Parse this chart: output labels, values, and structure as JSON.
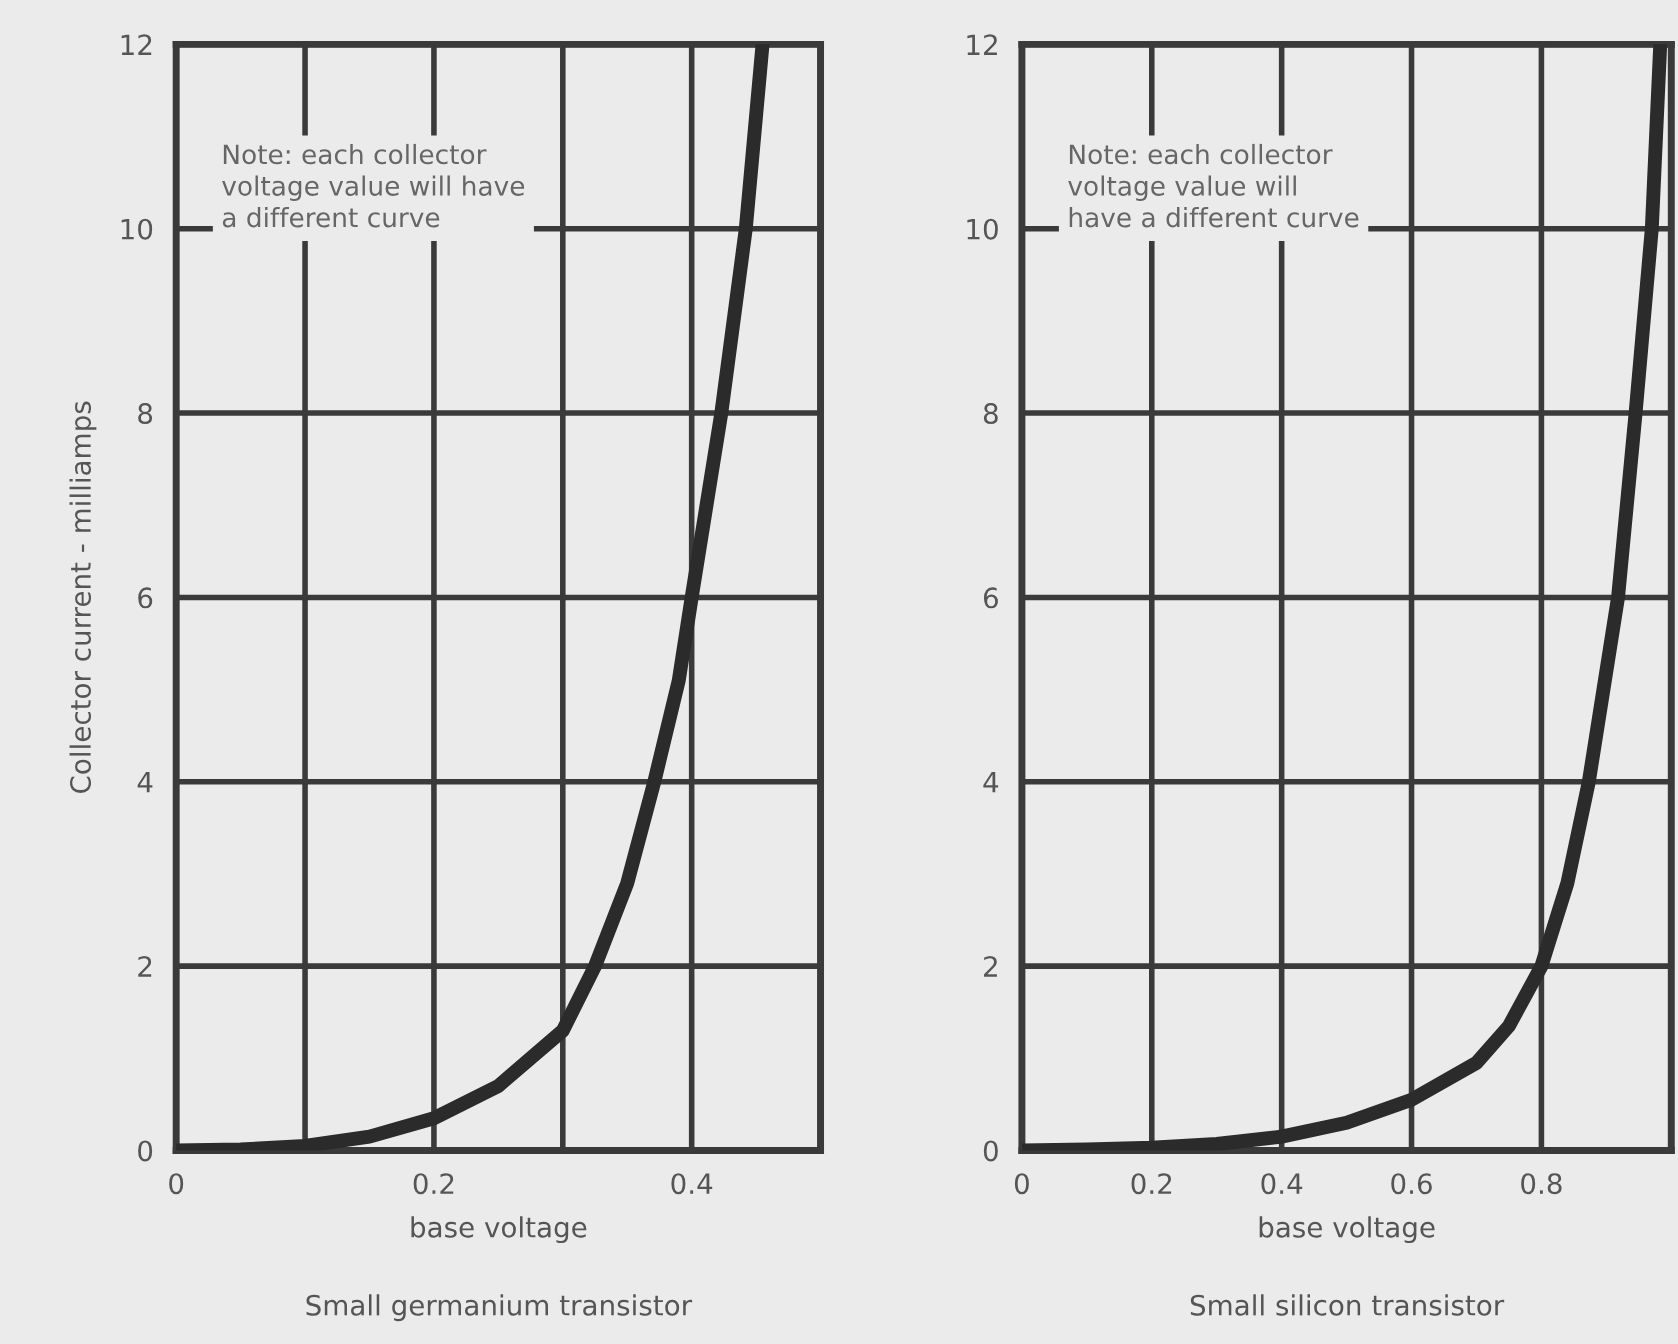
{
  "chart_data": [
    {
      "type": "line",
      "title": "Small germanium transistor",
      "xlabel": "base voltage",
      "ylabel": "Collector current - milliamps",
      "annotations": [
        "Note: each collector\nvoltage value will have\na different curve"
      ],
      "series": [
        {
          "color": "#2b2b2b",
          "x": [
            0,
            0.05,
            0.1,
            0.15,
            0.2,
            0.25,
            0.3,
            0.325,
            0.35,
            0.371,
            0.39,
            0.4,
            0.423,
            0.442,
            0.455
          ],
          "values": [
            0,
            0.01,
            0.05,
            0.15,
            0.35,
            0.7,
            1.3,
            2,
            2.9,
            4,
            5.1,
            6,
            8,
            10,
            12
          ]
        }
      ],
      "xlim": [
        0,
        0.5
      ],
      "ylim": [
        0,
        12
      ],
      "xticks": [
        0,
        {
          "value": 0.1,
          "label": null
        },
        0.2,
        {
          "value": 0.3,
          "label": null
        },
        0.4
      ],
      "yticks": [
        0,
        2,
        4,
        6,
        8,
        10,
        12
      ],
      "grid": true,
      "line_style": "solid",
      "marker": "none"
    },
    {
      "type": "line",
      "title": "Small silicon transistor",
      "xlabel": "base voltage",
      "annotations": [
        "Note: each collector\nvoltage value will\nhave a different curve"
      ],
      "series": [
        {
          "color": "#2b2b2b",
          "x": [
            0,
            0.1,
            0.2,
            0.3,
            0.4,
            0.5,
            0.6,
            0.7,
            0.75,
            0.8,
            0.84,
            0.873,
            0.918,
            0.945,
            0.97,
            0.983
          ],
          "values": [
            0,
            0.01,
            0.03,
            0.07,
            0.15,
            0.3,
            0.55,
            0.95,
            1.35,
            2,
            2.9,
            4,
            6,
            8,
            10,
            12
          ]
        }
      ],
      "xlim": [
        0,
        1
      ],
      "ylim": [
        0,
        12
      ],
      "xticks": [
        0,
        0.2,
        0.4,
        0.6,
        0.8
      ],
      "yticks": [
        0,
        2,
        4,
        6,
        8,
        10,
        12
      ],
      "grid": true,
      "line_style": "solid",
      "marker": "none"
    }
  ]
}
